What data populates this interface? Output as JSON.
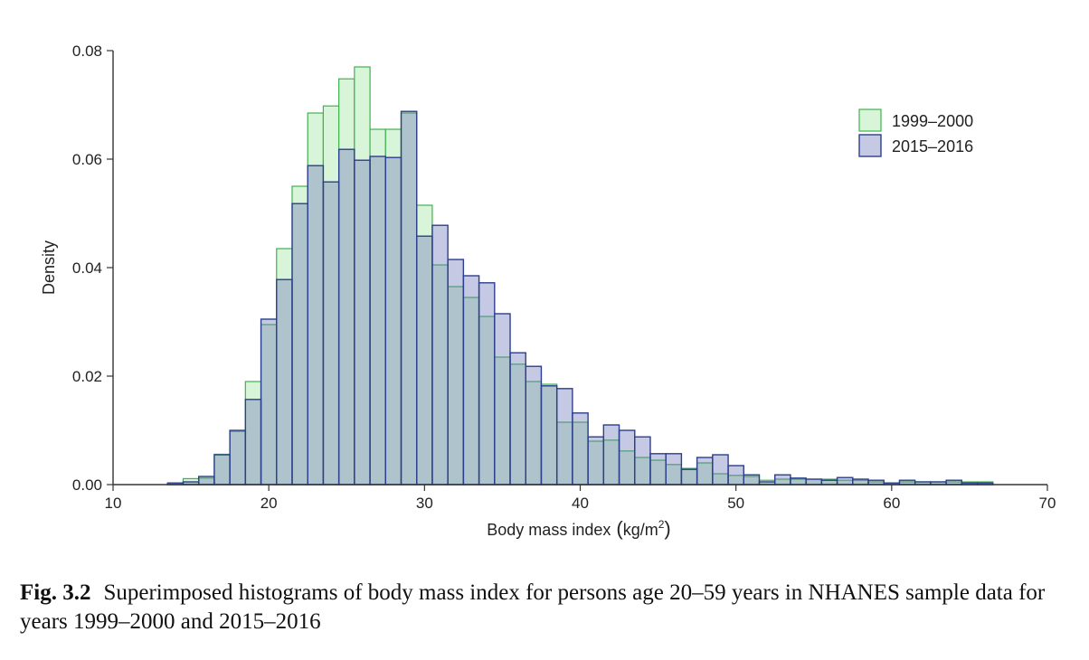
{
  "chart_data": {
    "type": "bar",
    "subtype": "overlaid-histogram",
    "title": "",
    "xlabel": "Body mass index",
    "xlabel_unit_base": "kg/m",
    "xlabel_unit_sup": "2",
    "xlabel_open": "(",
    "xlabel_close": ")",
    "ylabel": "Density",
    "xlim": [
      10,
      70
    ],
    "ylim": [
      0,
      0.08
    ],
    "x_ticks": [
      "10",
      "20",
      "30",
      "40",
      "50",
      "60",
      "70"
    ],
    "x_tick_values": [
      10,
      20,
      30,
      40,
      50,
      60,
      70
    ],
    "y_ticks": [
      "0.00",
      "0.02",
      "0.04",
      "0.06",
      "0.08"
    ],
    "y_tick_values": [
      0,
      0.02,
      0.04,
      0.06,
      0.08
    ],
    "bin_width": 1,
    "grid": false,
    "legend_position": "top-right",
    "colors": {
      "series_1_fill": "#d9f5d9",
      "series_1_edge": "#3fb24f",
      "series_2_fill": "#6e78b9",
      "series_2_edge": "#2c3f8c"
    },
    "series": [
      {
        "name": "1999–2000",
        "bin_starts": [
          13.5,
          14.5,
          15.5,
          16.5,
          17.5,
          18.5,
          19.5,
          20.5,
          21.5,
          22.5,
          23.5,
          24.5,
          25.5,
          26.5,
          27.5,
          28.5,
          29.5,
          30.5,
          31.5,
          32.5,
          33.5,
          34.5,
          35.5,
          36.5,
          37.5,
          38.5,
          39.5,
          40.5,
          41.5,
          42.5,
          43.5,
          44.5,
          45.5,
          46.5,
          47.5,
          48.5,
          49.5,
          50.5,
          51.5,
          52.5,
          53.5,
          54.5,
          55.5,
          56.5,
          57.5,
          58.5,
          59.5,
          60.5,
          61.5,
          62.5,
          63.5,
          64.5,
          65.5
        ],
        "values": [
          0.0003,
          0.0011,
          0.0012,
          0.0056,
          0.0098,
          0.019,
          0.0295,
          0.0435,
          0.055,
          0.0685,
          0.0698,
          0.0748,
          0.077,
          0.0655,
          0.0655,
          0.0685,
          0.0515,
          0.0405,
          0.0365,
          0.0345,
          0.031,
          0.0235,
          0.0222,
          0.019,
          0.0185,
          0.0115,
          0.0115,
          0.008,
          0.0082,
          0.0062,
          0.005,
          0.0045,
          0.0037,
          0.003,
          0.004,
          0.002,
          0.0017,
          0.0015,
          0.0008,
          0.001,
          0.001,
          0.001,
          0.001,
          0.0008,
          0.0008,
          0.0005,
          0.0003,
          0.0005,
          0.0005,
          0.0005,
          0.0005,
          0.0005,
          0.0005
        ]
      },
      {
        "name": "2015–2016",
        "bin_starts": [
          13.5,
          14.5,
          15.5,
          16.5,
          17.5,
          18.5,
          19.5,
          20.5,
          21.5,
          22.5,
          23.5,
          24.5,
          25.5,
          26.5,
          27.5,
          28.5,
          29.5,
          30.5,
          31.5,
          32.5,
          33.5,
          34.5,
          35.5,
          36.5,
          37.5,
          38.5,
          39.5,
          40.5,
          41.5,
          42.5,
          43.5,
          44.5,
          45.5,
          46.5,
          47.5,
          48.5,
          49.5,
          50.5,
          51.5,
          52.5,
          53.5,
          54.5,
          55.5,
          56.5,
          57.5,
          58.5,
          59.5,
          60.5,
          61.5,
          62.5,
          63.5,
          64.5,
          65.5
        ],
        "values": [
          0.0003,
          0.0005,
          0.0015,
          0.0055,
          0.01,
          0.0157,
          0.0305,
          0.0378,
          0.0518,
          0.0588,
          0.0558,
          0.0618,
          0.0598,
          0.0605,
          0.0603,
          0.0688,
          0.0458,
          0.0478,
          0.0415,
          0.0385,
          0.0372,
          0.0315,
          0.0243,
          0.0218,
          0.0182,
          0.0177,
          0.0132,
          0.0088,
          0.011,
          0.01,
          0.0088,
          0.0057,
          0.0057,
          0.0028,
          0.005,
          0.0055,
          0.0035,
          0.0018,
          0.0005,
          0.0018,
          0.0012,
          0.001,
          0.0008,
          0.0013,
          0.001,
          0.0008,
          0.0003,
          0.0008,
          0.0005,
          0.0005,
          0.0008,
          0.0003,
          0.0003
        ]
      }
    ]
  },
  "caption": {
    "label": "Fig. 3.2",
    "text": "Superimposed histograms of body mass index for persons age 20–59 years in NHANES sample data for years 1999–2000 and 2015–2016"
  }
}
